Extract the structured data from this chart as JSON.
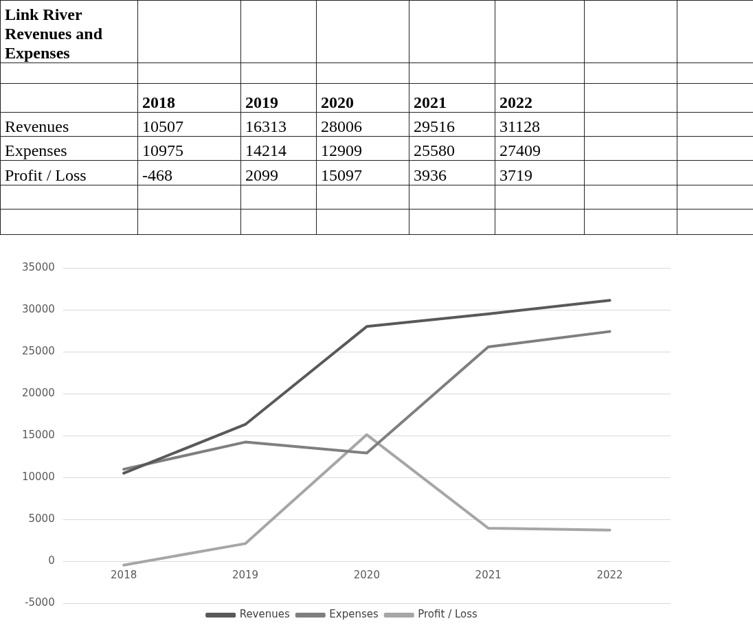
{
  "chart_data": [
    {
      "type": "heatmap",
      "title": "Link River Revenues and Expenses",
      "categories": [
        "2018",
        "2019",
        "2020",
        "2021",
        "2022"
      ],
      "y_categories": [
        "Revenues",
        "Expenses",
        "Profit / Loss"
      ],
      "cells": [
        [
          10507,
          16313,
          28006,
          29516,
          31128
        ],
        [
          10975,
          14214,
          12909,
          25580,
          27409
        ],
        [
          -468,
          2099,
          15097,
          3936,
          3719
        ]
      ],
      "data_labels": true
    },
    {
      "type": "line",
      "categories": [
        "2018",
        "2019",
        "2020",
        "2021",
        "2022"
      ],
      "series": [
        {
          "name": "Revenues",
          "color": "#595959",
          "values": [
            10507,
            16313,
            28006,
            29516,
            31128
          ]
        },
        {
          "name": "Expenses",
          "color": "#7f7f7f",
          "values": [
            10975,
            14214,
            12909,
            25580,
            27409
          ]
        },
        {
          "name": "Profit / Loss",
          "color": "#a6a6a6",
          "values": [
            -468,
            2099,
            15097,
            3936,
            3719
          ]
        }
      ],
      "ylim": [
        -5000,
        35000
      ],
      "yticks": [
        -5000,
        0,
        5000,
        10000,
        15000,
        20000,
        25000,
        30000,
        35000
      ],
      "grid": "y",
      "legend": "bottom",
      "marker": "none",
      "line_style": "solid"
    }
  ]
}
